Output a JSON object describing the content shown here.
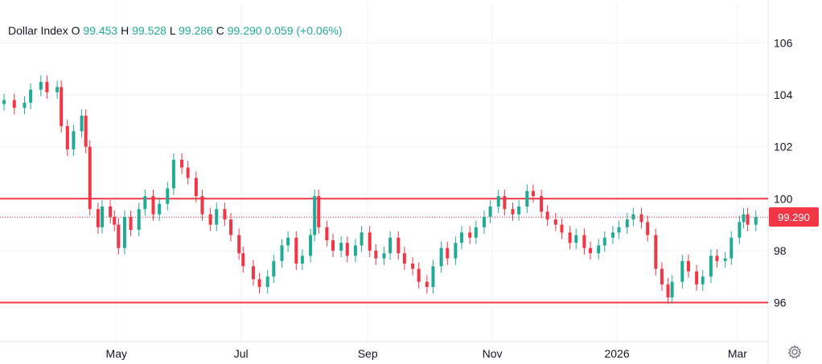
{
  "legend": {
    "symbol": "Dollar Index",
    "open_key": "O",
    "open": "99.453",
    "high_key": "H",
    "high": "99.528",
    "low_key": "L",
    "low": "99.286",
    "close_key": "C",
    "close": "99.290",
    "change": "0.059",
    "change_pct": "(+0.06%)"
  },
  "price_badge": "99.290",
  "colors": {
    "up": "#22ab94",
    "down": "#f23645",
    "line": "#f23645",
    "grid": "#f0f3fa",
    "text": "#131722"
  },
  "chart_data": {
    "type": "candlestick",
    "title": "Dollar Index",
    "ylim": [
      94.5,
      107.5
    ],
    "y_ticks": [
      96,
      98,
      100,
      102,
      104,
      106
    ],
    "x_tick_labels": [
      "May",
      "Jul",
      "Sep",
      "Nov",
      "2026",
      "Mar"
    ],
    "x_tick_dates": [
      "2025-05-01",
      "2025-07-01",
      "2025-09-01",
      "2025-11-01",
      "2026-01-01",
      "2026-03-01"
    ],
    "x_range": [
      "2025-03-05",
      "2026-03-16"
    ],
    "horizontal_lines": [
      {
        "value": 100,
        "style": "solid"
      },
      {
        "value": 96,
        "style": "solid"
      },
      {
        "value": 99.29,
        "style": "dotted",
        "label": "99.290"
      }
    ],
    "close_series": [
      [
        "2025-03-07",
        103.8
      ],
      [
        "2025-03-12",
        103.5
      ],
      [
        "2025-03-17",
        103.7
      ],
      [
        "2025-03-20",
        104.2
      ],
      [
        "2025-03-25",
        104.5
      ],
      [
        "2025-03-28",
        104.1
      ],
      [
        "2025-04-02",
        104.3
      ],
      [
        "2025-04-04",
        102.8
      ],
      [
        "2025-04-07",
        101.9
      ],
      [
        "2025-04-10",
        102.6
      ],
      [
        "2025-04-14",
        103.2
      ],
      [
        "2025-04-16",
        102.0
      ],
      [
        "2025-04-18",
        99.6
      ],
      [
        "2025-04-22",
        98.9
      ],
      [
        "2025-04-24",
        99.7
      ],
      [
        "2025-04-28",
        99.3
      ],
      [
        "2025-04-30",
        99.0
      ],
      [
        "2025-05-02",
        98.1
      ],
      [
        "2025-05-05",
        99.3
      ],
      [
        "2025-05-08",
        98.8
      ],
      [
        "2025-05-12",
        99.6
      ],
      [
        "2025-05-15",
        100.1
      ],
      [
        "2025-05-19",
        99.4
      ],
      [
        "2025-05-22",
        99.8
      ],
      [
        "2025-05-26",
        100.4
      ],
      [
        "2025-05-29",
        101.5
      ],
      [
        "2025-06-02",
        101.2
      ],
      [
        "2025-06-05",
        100.8
      ],
      [
        "2025-06-09",
        100.1
      ],
      [
        "2025-06-12",
        99.4
      ],
      [
        "2025-06-16",
        99.0
      ],
      [
        "2025-06-19",
        99.6
      ],
      [
        "2025-06-23",
        99.2
      ],
      [
        "2025-06-26",
        98.6
      ],
      [
        "2025-06-30",
        97.9
      ],
      [
        "2025-07-02",
        97.4
      ],
      [
        "2025-07-07",
        96.9
      ],
      [
        "2025-07-10",
        96.6
      ],
      [
        "2025-07-14",
        97.0
      ],
      [
        "2025-07-17",
        97.6
      ],
      [
        "2025-07-21",
        98.2
      ],
      [
        "2025-07-24",
        98.5
      ],
      [
        "2025-07-28",
        97.5
      ],
      [
        "2025-07-31",
        97.8
      ],
      [
        "2025-08-04",
        98.6
      ],
      [
        "2025-08-06",
        100.1
      ],
      [
        "2025-08-08",
        98.9
      ],
      [
        "2025-08-12",
        98.4
      ],
      [
        "2025-08-15",
        98.0
      ],
      [
        "2025-08-19",
        98.3
      ],
      [
        "2025-08-22",
        97.8
      ],
      [
        "2025-08-26",
        98.2
      ],
      [
        "2025-08-29",
        98.7
      ],
      [
        "2025-09-02",
        98.0
      ],
      [
        "2025-09-05",
        97.7
      ],
      [
        "2025-09-09",
        97.9
      ],
      [
        "2025-09-12",
        98.5
      ],
      [
        "2025-09-16",
        97.9
      ],
      [
        "2025-09-19",
        97.5
      ],
      [
        "2025-09-23",
        97.3
      ],
      [
        "2025-09-26",
        96.8
      ],
      [
        "2025-09-30",
        96.6
      ],
      [
        "2025-10-03",
        97.4
      ],
      [
        "2025-10-07",
        98.1
      ],
      [
        "2025-10-10",
        97.7
      ],
      [
        "2025-10-14",
        98.3
      ],
      [
        "2025-10-17",
        98.7
      ],
      [
        "2025-10-21",
        98.5
      ],
      [
        "2025-10-24",
        98.9
      ],
      [
        "2025-10-28",
        99.3
      ],
      [
        "2025-10-31",
        99.7
      ],
      [
        "2025-11-04",
        100.1
      ],
      [
        "2025-11-07",
        99.6
      ],
      [
        "2025-11-11",
        99.4
      ],
      [
        "2025-11-14",
        99.7
      ],
      [
        "2025-11-18",
        100.3
      ],
      [
        "2025-11-21",
        100.1
      ],
      [
        "2025-11-25",
        99.5
      ],
      [
        "2025-11-28",
        99.2
      ],
      [
        "2025-12-02",
        99.0
      ],
      [
        "2025-12-05",
        98.7
      ],
      [
        "2025-12-09",
        98.3
      ],
      [
        "2025-12-12",
        98.6
      ],
      [
        "2025-12-16",
        98.1
      ],
      [
        "2025-12-19",
        97.9
      ],
      [
        "2025-12-23",
        98.2
      ],
      [
        "2025-12-26",
        98.5
      ],
      [
        "2025-12-30",
        98.7
      ],
      [
        "2026-01-02",
        98.9
      ],
      [
        "2026-01-06",
        99.2
      ],
      [
        "2026-01-09",
        99.4
      ],
      [
        "2026-01-13",
        99.1
      ],
      [
        "2026-01-16",
        98.6
      ],
      [
        "2026-01-20",
        97.3
      ],
      [
        "2026-01-23",
        96.7
      ],
      [
        "2026-01-26",
        96.2
      ],
      [
        "2026-01-28",
        96.8
      ],
      [
        "2026-02-02",
        97.6
      ],
      [
        "2026-02-05",
        97.2
      ],
      [
        "2026-02-09",
        96.7
      ],
      [
        "2026-02-12",
        97.0
      ],
      [
        "2026-02-16",
        97.8
      ],
      [
        "2026-02-19",
        97.6
      ],
      [
        "2026-02-23",
        97.7
      ],
      [
        "2026-02-26",
        98.5
      ],
      [
        "2026-03-02",
        99.1
      ],
      [
        "2026-03-04",
        99.4
      ],
      [
        "2026-03-06",
        99.0
      ],
      [
        "2026-03-10",
        99.3
      ]
    ]
  }
}
